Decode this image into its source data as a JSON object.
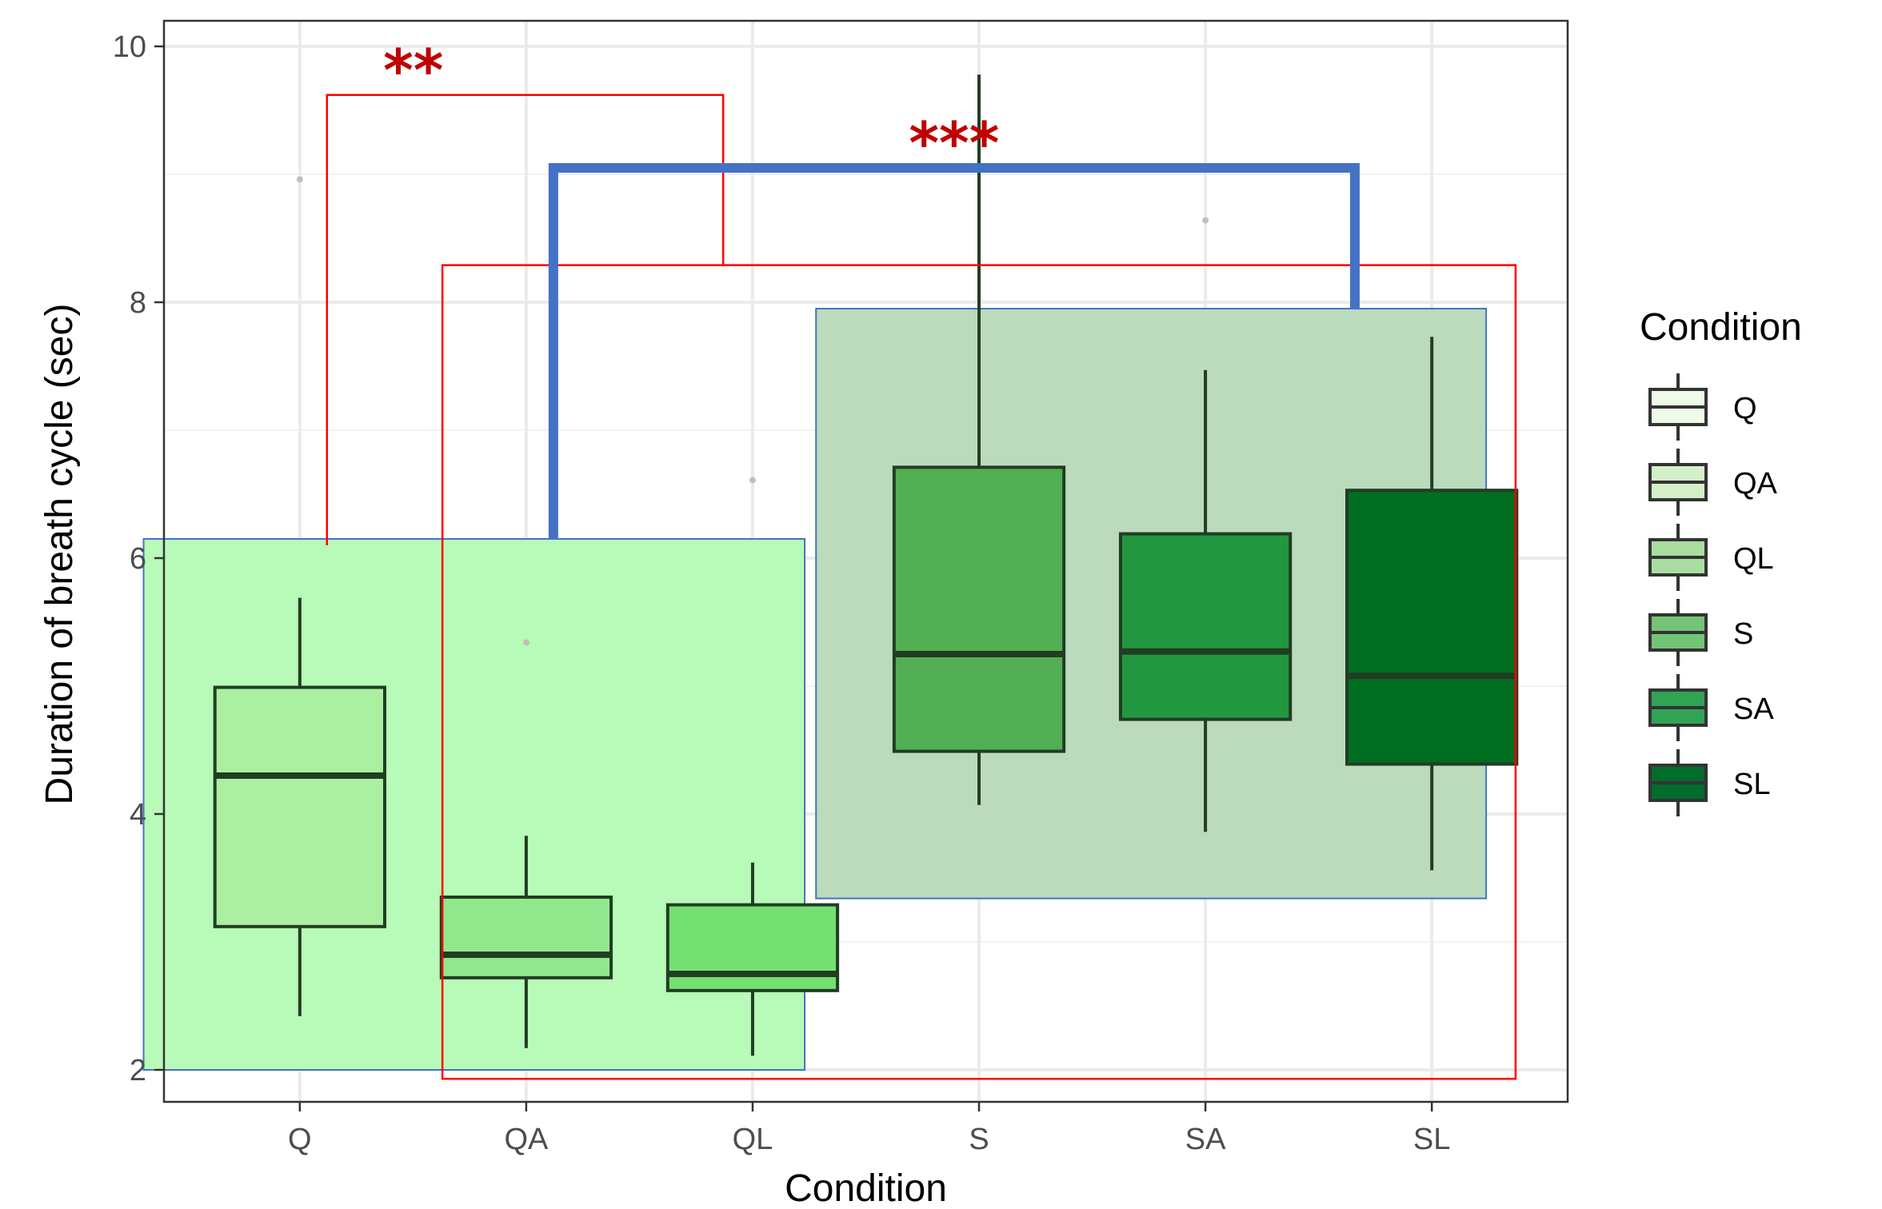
{
  "chart_data": {
    "type": "boxplot",
    "xlabel": "Condition",
    "ylabel": "Duration of breath cycle (sec)",
    "categories": [
      "Q",
      "QA",
      "QL",
      "S",
      "SA",
      "SL"
    ],
    "ylim": [
      1.75,
      10.2
    ],
    "yticks": [
      2,
      4,
      6,
      8,
      10
    ],
    "grid": true,
    "legend": {
      "title": "Condition",
      "position": "right",
      "items": [
        "Q",
        "QA",
        "QL",
        "S",
        "SA",
        "SL"
      ]
    },
    "boxes": [
      {
        "category": "Q",
        "whisker_low": 2.42,
        "q1": 3.12,
        "median": 4.3,
        "q3": 4.99,
        "whisker_high": 5.69,
        "outliers": [
          8.96
        ],
        "fill": "#aaf0a0"
      },
      {
        "category": "QA",
        "whisker_low": 2.17,
        "q1": 2.72,
        "median": 2.9,
        "q3": 3.35,
        "whisker_high": 3.83,
        "outliers": [
          5.34
        ],
        "fill": "#91e88c"
      },
      {
        "category": "QL",
        "whisker_low": 2.11,
        "q1": 2.62,
        "median": 2.75,
        "q3": 3.29,
        "whisker_high": 3.62,
        "outliers": [
          6.61
        ],
        "fill": "#75e072"
      },
      {
        "category": "S",
        "whisker_low": 4.07,
        "q1": 4.49,
        "median": 5.25,
        "q3": 6.71,
        "whisker_high": 9.78,
        "outliers": [],
        "fill": "#52af53"
      },
      {
        "category": "SA",
        "whisker_low": 3.86,
        "q1": 4.74,
        "median": 5.27,
        "q3": 6.19,
        "whisker_high": 7.47,
        "outliers": [
          8.64
        ],
        "fill": "#229740"
      },
      {
        "category": "SL",
        "whisker_low": 3.56,
        "q1": 4.39,
        "median": 5.08,
        "q3": 6.53,
        "whisker_high": 7.73,
        "outliers": [],
        "fill": "#006e20"
      }
    ],
    "annotations": [
      {
        "type": "region",
        "name": "quiet-group",
        "x_from": 0.31,
        "x_to": 3.23,
        "y_from": 2.0,
        "y_to": 6.15,
        "fill": "#b8fbb8",
        "stroke": "#4472c4"
      },
      {
        "type": "region",
        "name": "speech-group",
        "x_from": 3.28,
        "x_to": 6.24,
        "y_from": 3.34,
        "y_to": 7.95,
        "fill": "#bcdbbc",
        "stroke": "#4472c4"
      },
      {
        "type": "region-outline",
        "name": "red-group",
        "x_from": 1.63,
        "x_to": 6.37,
        "y_from": 1.93,
        "y_to": 8.29,
        "stroke": "#ff0000"
      },
      {
        "type": "bracket",
        "name": "bracket-red",
        "x_left": 1.12,
        "x_right": 2.87,
        "y_top": 9.62,
        "y_left_bottom": 6.1,
        "y_right_bottom": 8.29,
        "stroke": "#ff0000",
        "label": "**"
      },
      {
        "type": "bracket",
        "name": "bracket-blue",
        "x_left": 2.12,
        "x_right": 5.66,
        "y_top": 9.05,
        "y_left_bottom": 6.15,
        "y_right_bottom": 7.95,
        "stroke": "#4472c4",
        "label": "***"
      }
    ],
    "significance_color": "#c00000"
  }
}
